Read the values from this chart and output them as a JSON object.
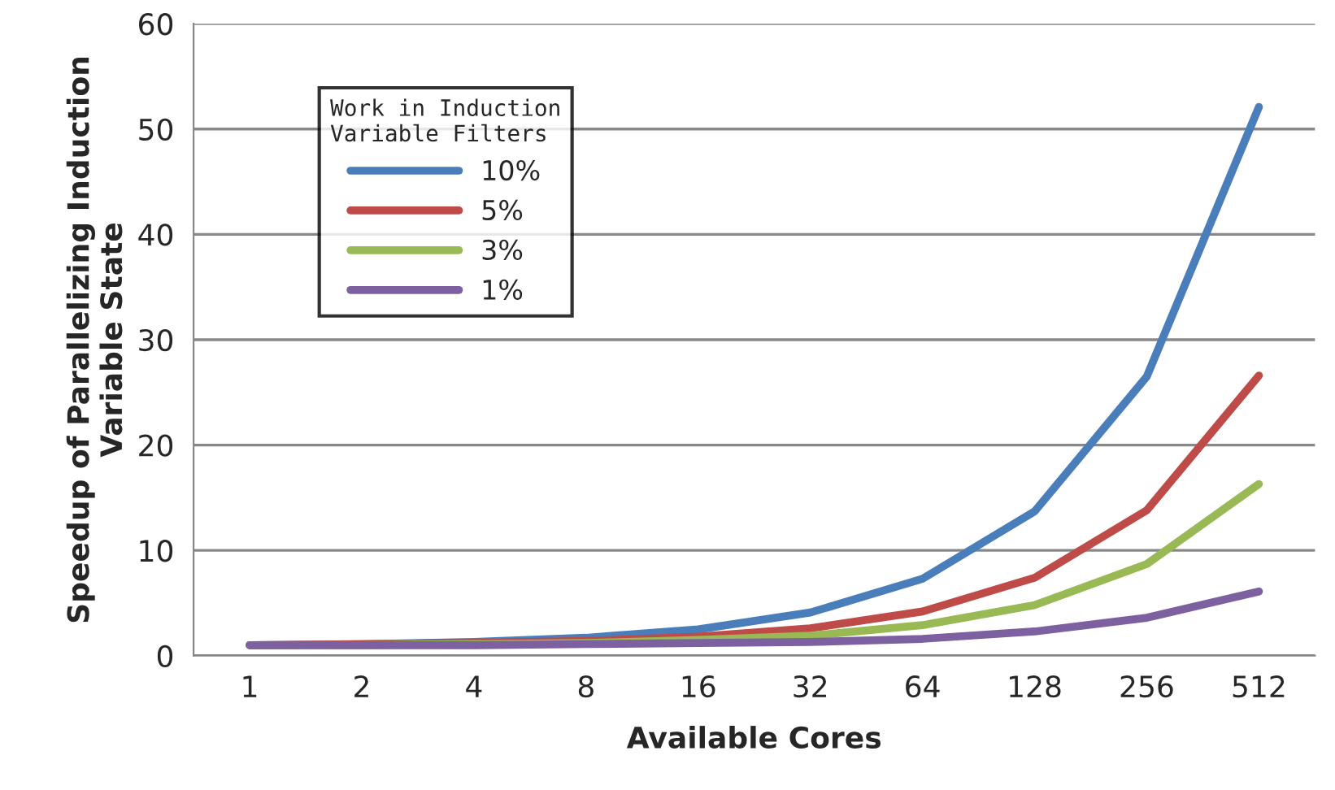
{
  "chart_data": {
    "type": "line",
    "xlabel": "Available Cores",
    "ylabel": "Speedup of Parallelizing Induction\nVariable State",
    "legend_title": "Work in Induction\nVariable Filters",
    "categories": [
      "1",
      "2",
      "4",
      "8",
      "16",
      "32",
      "64",
      "128",
      "256",
      "512"
    ],
    "series": [
      {
        "name": "10%",
        "color": "#4a7ebb",
        "values": [
          1.0,
          1.1,
          1.3,
          1.7,
          2.5,
          4.1,
          7.3,
          13.7,
          26.5,
          52.1
        ]
      },
      {
        "name": "5%",
        "color": "#be4b48",
        "values": [
          1.0,
          1.1,
          1.2,
          1.4,
          1.8,
          2.6,
          4.2,
          7.4,
          13.8,
          26.6
        ]
      },
      {
        "name": "3%",
        "color": "#98b954",
        "values": [
          1.0,
          1.0,
          1.1,
          1.2,
          1.5,
          1.9,
          2.9,
          4.8,
          8.7,
          16.3
        ]
      },
      {
        "name": "1%",
        "color": "#7d60a0",
        "values": [
          1.0,
          1.0,
          1.0,
          1.1,
          1.2,
          1.3,
          1.6,
          2.3,
          3.6,
          6.1
        ]
      }
    ],
    "ylim": [
      0,
      60
    ],
    "yticks": [
      0,
      10,
      20,
      30,
      40,
      50,
      60
    ],
    "grid": "y",
    "legend": "top left",
    "marker": "none",
    "line_style": "solid"
  }
}
